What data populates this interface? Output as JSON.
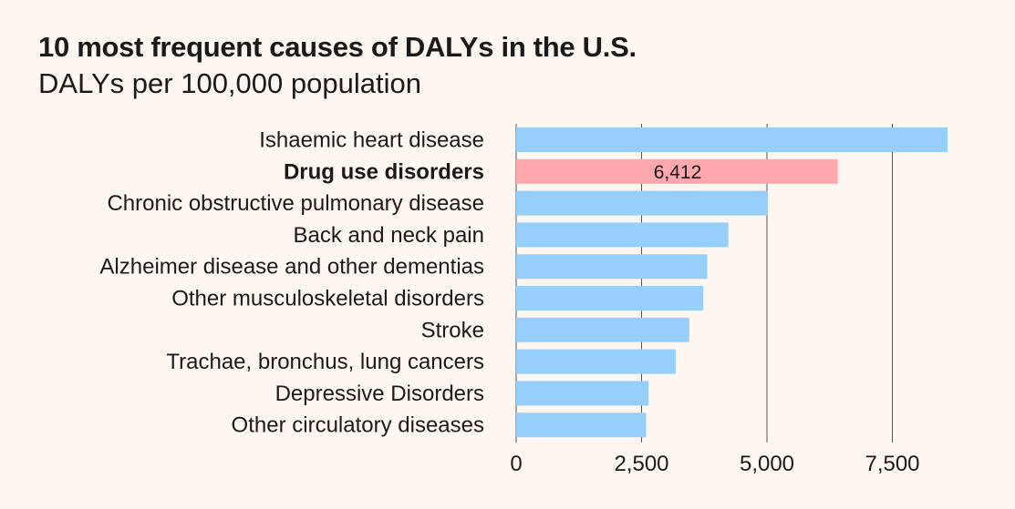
{
  "chart_data": {
    "type": "bar",
    "orientation": "horizontal",
    "title": "10 most frequent causes of DALYs in the U.S.",
    "subtitle": "DALYs per 100,000 population",
    "xlabel": "",
    "ylabel": "",
    "categories": [
      "Ishaemic heart disease",
      "Drug use disorders",
      "Chronic obstructive pulmonary disease",
      "Back and neck pain",
      "Alzheimer disease and other dementias",
      "Other musculoskeletal disorders",
      "Stroke",
      "Trachae, bronchus, lung cancers",
      "Depressive Disorders",
      "Other circulatory diseases"
    ],
    "values": [
      8600,
      6412,
      5020,
      4230,
      3810,
      3730,
      3450,
      3180,
      2640,
      2590
    ],
    "highlight_index": 1,
    "highlight_label": "6,412",
    "xlim": [
      0,
      8600
    ],
    "xticks": [
      0,
      2500,
      5000,
      7500
    ],
    "xtick_labels": [
      "0",
      "2,500",
      "5,000",
      "7,500"
    ],
    "grid": true,
    "colors": {
      "default_bar": "#96cffc",
      "highlight_bar": "#fea7ad",
      "grid": "#555555",
      "background": "#fdf6f1",
      "text": "#1a1a1a"
    }
  }
}
